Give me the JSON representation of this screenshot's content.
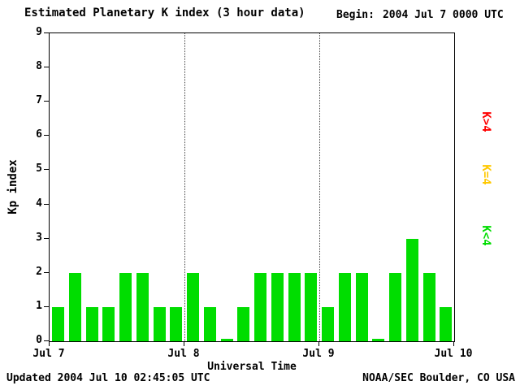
{
  "header": {
    "title": "Estimated Planetary K index (3 hour data)",
    "begin_label": "Begin:",
    "begin_value": "2004 Jul 7 0000 UTC"
  },
  "footer": {
    "updated": "Updated 2004 Jul 10 02:45:05 UTC",
    "source": "NOAA/SEC Boulder, CO USA"
  },
  "legend": {
    "position": "right",
    "items": [
      {
        "label": "K>4",
        "color": "#ff0000"
      },
      {
        "label": "K=4",
        "color": "#ffc800"
      },
      {
        "label": "K<4",
        "color": "#00dd00"
      }
    ]
  },
  "chart_data": {
    "type": "bar",
    "title": "Estimated Planetary K index (3 hour data)",
    "xlabel": "Universal Time",
    "ylabel": "Kp index",
    "ylim": [
      0,
      9
    ],
    "yticks": [
      0,
      1,
      2,
      3,
      4,
      5,
      6,
      7,
      8,
      9
    ],
    "x_tick_labels": [
      "Jul 7",
      "Jul 8",
      "Jul 9",
      "Jul 10"
    ],
    "interval_hours": 3,
    "begin_utc": "2004 Jul 7 0000 UTC",
    "bar_color": "#00dd00",
    "values": [
      1,
      2,
      1,
      1,
      2,
      2,
      1,
      1,
      2,
      1,
      0,
      1,
      2,
      2,
      2,
      2,
      1,
      2,
      2,
      0,
      2,
      3,
      2,
      1
    ],
    "grid": "dotted vertical lines at day boundaries",
    "color_rule": "green K<4, yellow K=4, red K>4"
  }
}
